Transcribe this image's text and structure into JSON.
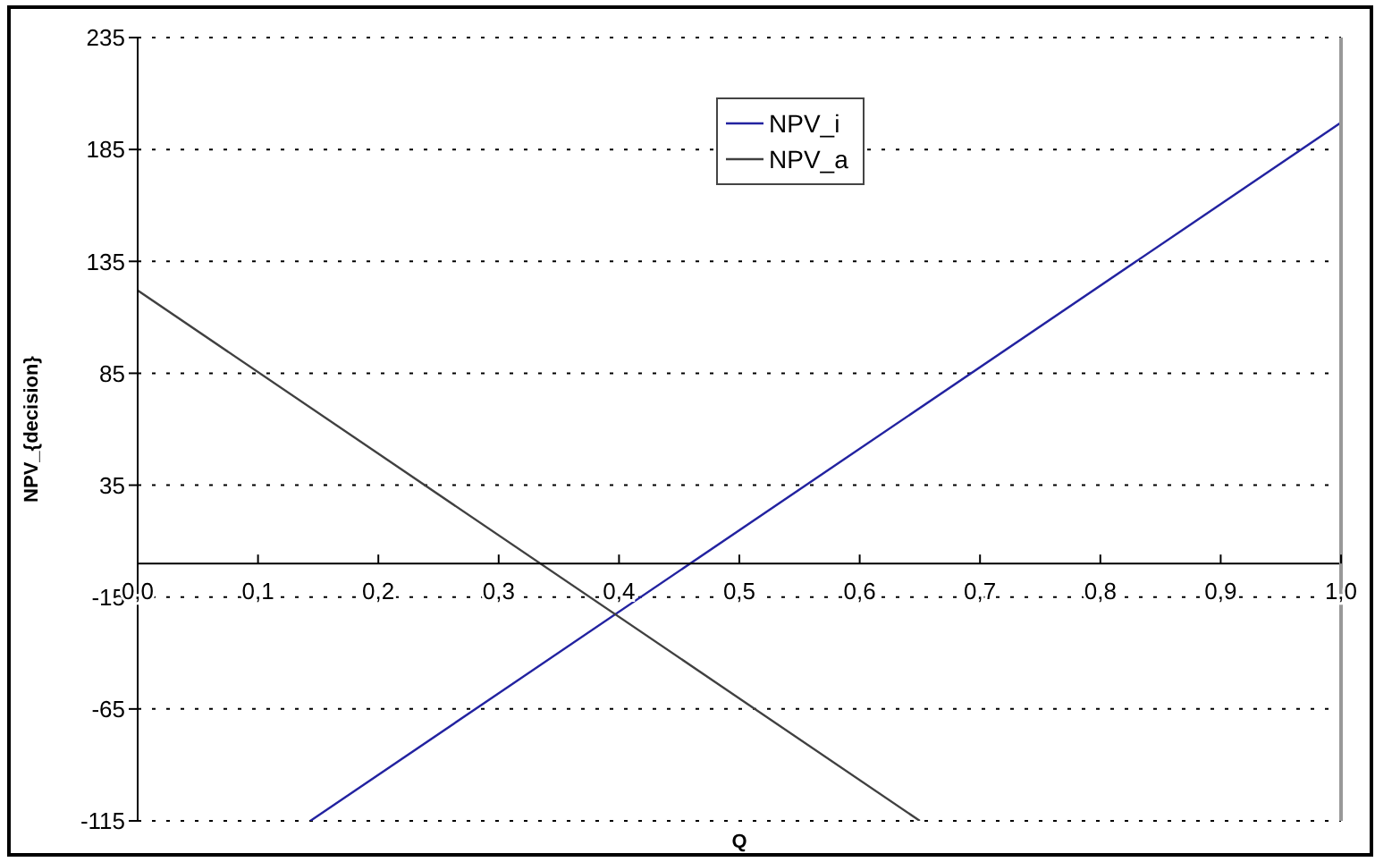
{
  "chart_data": {
    "type": "line",
    "xlabel": "Q",
    "ylabel": "NPV_{decision}",
    "series": [
      {
        "name": "NPV_i",
        "color": "#2222a0",
        "x": [
          0.1435,
          1
        ],
        "values": [
          -115,
          197
        ]
      },
      {
        "name": "NPV_a",
        "color": "#404040",
        "x": [
          0,
          0.65
        ],
        "values": [
          122,
          -115
        ]
      }
    ],
    "xlim": [
      0,
      1
    ],
    "xticks": [
      {
        "value": 0,
        "label": "0,0"
      },
      {
        "value": 0.1,
        "label": "0,1"
      },
      {
        "value": 0.2,
        "label": "0,2"
      },
      {
        "value": 0.3,
        "label": "0,3"
      },
      {
        "value": 0.4,
        "label": "0,4"
      },
      {
        "value": 0.5,
        "label": "0,5"
      },
      {
        "value": 0.6,
        "label": "0,6"
      },
      {
        "value": 0.7,
        "label": "0,7"
      },
      {
        "value": 0.8,
        "label": "0,8"
      },
      {
        "value": 0.9,
        "label": "0,9"
      },
      {
        "value": 1,
        "label": "1,0"
      }
    ],
    "ylim": [
      -115,
      235
    ],
    "yticks": [
      -115,
      -65,
      -15,
      35,
      85,
      135,
      185,
      235
    ],
    "grid": "y",
    "legend": "top",
    "marker": "none",
    "line_style": "solid"
  }
}
